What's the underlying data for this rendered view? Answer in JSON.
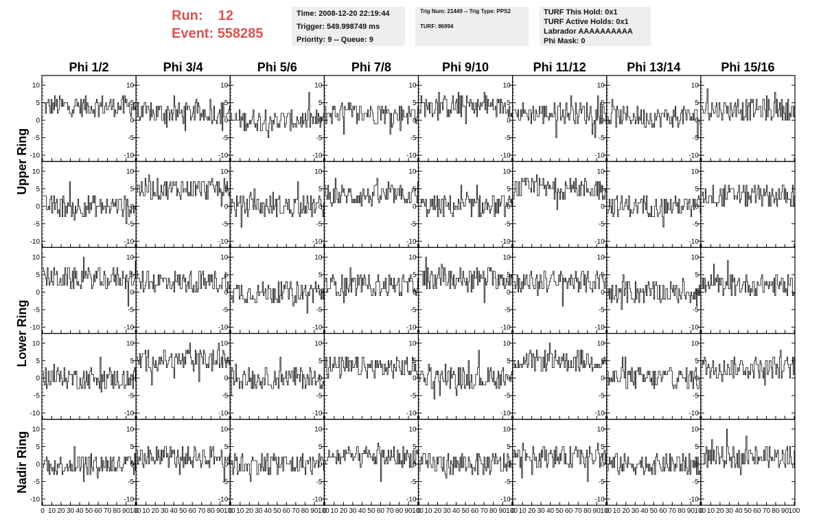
{
  "header": {
    "run_label": "Run:",
    "run_value": "12",
    "event_label": "Event:",
    "event_value": "558285"
  },
  "info_time": {
    "time": "Time: 2008-12-20 22:19:44",
    "trigger": "Trigger: 549.998749 ms",
    "priority": "Priority: 9 -- Queue: 9"
  },
  "info_trig": {
    "trig": "Trig Num: 21449 -- Trig Type: PPS2",
    "turf": "TURF: 86994"
  },
  "info_turf": {
    "this_hold": "TURF This Hold: 0x1",
    "active_holds": "TURF Active Holds: 0x1",
    "labrador": "Labrador AAAAAAAAAA",
    "phi_mask": "Phi Mask: 0"
  },
  "chart_data": {
    "type": "line",
    "columns": [
      "Phi 1/2",
      "Phi 3/4",
      "Phi 5/6",
      "Phi 7/8",
      "Phi 9/10",
      "Phi 11/12",
      "Phi 13/14",
      "Phi 15/16"
    ],
    "ring_labels": [
      "Upper Ring",
      "Lower Ring",
      "Nadir Ring"
    ],
    "rows": 5,
    "xlim": [
      0,
      100
    ],
    "ylim": [
      -11,
      12
    ],
    "xticks": [
      "0",
      "10",
      "20",
      "30",
      "40",
      "50",
      "60",
      "70",
      "80",
      "90",
      "100"
    ],
    "yticks": [
      "-10",
      "-5",
      "0",
      "5",
      "10"
    ],
    "x_step": 1,
    "baselines": [
      [
        4,
        2,
        0,
        2,
        4,
        2,
        1,
        3
      ],
      [
        0,
        5,
        0,
        3,
        0,
        5,
        0,
        3
      ],
      [
        4,
        3,
        0,
        2,
        4,
        3,
        0,
        2
      ],
      [
        0,
        5,
        0,
        3,
        0,
        5,
        0,
        3
      ],
      [
        0,
        2,
        0,
        2,
        0,
        2,
        0,
        2
      ]
    ],
    "line_color": "#000000"
  }
}
